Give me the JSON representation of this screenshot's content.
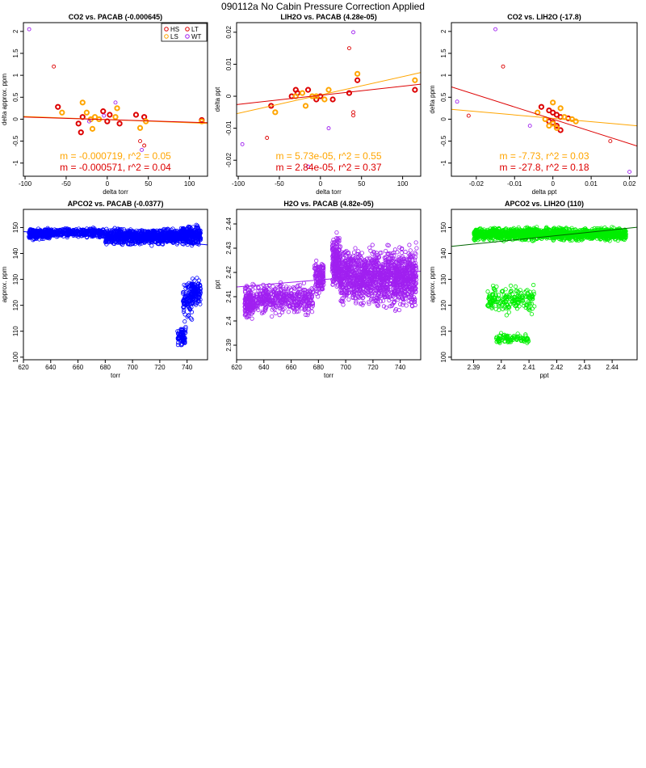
{
  "figure": {
    "title": "090112a   No Cabin Pressure Correction Applied"
  },
  "chart_data": [
    {
      "type": "scatter",
      "title": "CO2 vs. PACAB (-0.000645)",
      "xlabel": "delta torr",
      "ylabel": "delta approx. ppm",
      "xlim": [
        -102,
        122
      ],
      "ylim": [
        -1.3,
        2.2
      ],
      "xticks": [
        -100,
        -50,
        0,
        50,
        100
      ],
      "yticks": [
        -1.0,
        -0.5,
        0.0,
        0.5,
        1.0,
        1.5,
        2.0
      ],
      "grid": false,
      "legend": {
        "placement": "top-right",
        "entries": [
          {
            "label": "HS",
            "color": "#dd0000"
          },
          {
            "label": "LT",
            "color": "#dd0000"
          },
          {
            "label": "LS",
            "color": "#ffa500"
          },
          {
            "label": "WT",
            "color": "#a020f0"
          }
        ]
      },
      "series": [
        {
          "name": "HS",
          "color": "#dd0000",
          "thick": true,
          "x": [
            -60,
            -35,
            -32,
            -30,
            -5,
            0,
            3,
            15,
            35,
            45,
            115
          ],
          "y": [
            0.28,
            -0.1,
            -0.3,
            0.05,
            0.18,
            -0.05,
            0.1,
            -0.1,
            0.1,
            0.05,
            -0.02
          ]
        },
        {
          "name": "LS",
          "color": "#ffa500",
          "thick": true,
          "x": [
            -55,
            -30,
            -25,
            -20,
            -18,
            -15,
            -10,
            10,
            12,
            40,
            47,
            115
          ],
          "y": [
            0.15,
            0.38,
            0.15,
            0.0,
            -0.22,
            0.05,
            0.0,
            0.05,
            0.25,
            -0.2,
            -0.05,
            -0.05
          ]
        },
        {
          "name": "LT",
          "color": "#dd0000",
          "thick": false,
          "x": [
            -65,
            40,
            45
          ],
          "y": [
            1.2,
            -0.5,
            -0.6
          ]
        },
        {
          "name": "WT",
          "color": "#a020f0",
          "thick": false,
          "x": [
            -95,
            10,
            42,
            -22,
            -4
          ],
          "y": [
            2.05,
            0.38,
            -0.7,
            -0.05,
            0.08
          ]
        }
      ],
      "fit_lines": [
        {
          "color": "#ffa500",
          "slope": -0.000719,
          "intercept": -0.01
        },
        {
          "color": "#dd0000",
          "slope": -0.000571,
          "intercept": -0.01
        }
      ],
      "annotations": [
        {
          "text": "m = -0.000719, r^2 = 0.05",
          "color": "#ffa500"
        },
        {
          "text": "m = -0.000571, r^2 = 0.04",
          "color": "#dd0000"
        }
      ]
    },
    {
      "type": "scatter",
      "title": "LIH2O vs. PACAB (4.28e-05)",
      "xlabel": "delta torr",
      "ylabel": "delta ppt",
      "xlim": [
        -102,
        122
      ],
      "ylim": [
        -0.025,
        0.023
      ],
      "xticks": [
        -100,
        -50,
        0,
        50,
        100
      ],
      "yticks": [
        -0.02,
        -0.01,
        0.0,
        0.01,
        0.02
      ],
      "grid": false,
      "series": [
        {
          "name": "HS",
          "color": "#dd0000",
          "thick": true,
          "x": [
            -60,
            -35,
            -30,
            -28,
            -15,
            -5,
            0,
            15,
            35,
            45,
            115
          ],
          "y": [
            -0.003,
            0.0,
            0.002,
            0.001,
            0.002,
            -0.001,
            0.0,
            -0.001,
            0.001,
            0.005,
            0.002
          ]
        },
        {
          "name": "LS",
          "color": "#ffa500",
          "thick": true,
          "x": [
            -55,
            -30,
            -22,
            -18,
            -10,
            -5,
            5,
            10,
            45,
            115
          ],
          "y": [
            -0.005,
            0.0,
            0.001,
            -0.003,
            0.0,
            0.0,
            -0.001,
            0.002,
            0.007,
            0.005
          ]
        },
        {
          "name": "LT",
          "color": "#dd0000",
          "thick": false,
          "x": [
            -65,
            35,
            40,
            40
          ],
          "y": [
            -0.013,
            0.015,
            -0.006,
            -0.005
          ]
        },
        {
          "name": "WT",
          "color": "#a020f0",
          "thick": false,
          "x": [
            -95,
            40,
            -15,
            10
          ],
          "y": [
            -0.015,
            0.02,
            -0.022,
            -0.01
          ]
        }
      ],
      "fit_lines": [
        {
          "color": "#ffa500",
          "slope": 5.73e-05,
          "intercept": 0.0004
        },
        {
          "color": "#dd0000",
          "slope": 2.84e-05,
          "intercept": 0.0003
        }
      ],
      "annotations": [
        {
          "text": "m = 5.73e-05, r^2 = 0.55",
          "color": "#ffa500"
        },
        {
          "text": "m = 2.84e-05, r^2 = 0.37",
          "color": "#dd0000"
        }
      ]
    },
    {
      "type": "scatter",
      "title": "CO2 vs. LIH2O (-17.8)",
      "xlabel": "delta ppt",
      "ylabel": "delta ppm",
      "xlim": [
        -0.0265,
        0.022
      ],
      "ylim": [
        -1.3,
        2.2
      ],
      "xticks": [
        -0.02,
        -0.01,
        0.0,
        0.01,
        0.02
      ],
      "yticks": [
        -1.0,
        -0.5,
        0.0,
        0.5,
        1.0,
        1.5,
        2.0
      ],
      "grid": false,
      "series": [
        {
          "name": "HS",
          "color": "#dd0000",
          "thick": true,
          "x": [
            -0.003,
            -0.001,
            0.0,
            0.001,
            0.002,
            -0.001,
            0.0,
            0.002,
            0.004,
            0.001
          ],
          "y": [
            0.28,
            0.2,
            0.15,
            0.1,
            -0.25,
            -0.05,
            -0.08,
            0.05,
            0.02,
            -0.15
          ]
        },
        {
          "name": "LS",
          "color": "#ffa500",
          "thick": true,
          "x": [
            -0.004,
            -0.002,
            0.0,
            0.0,
            0.002,
            0.003,
            -0.001,
            0.001,
            0.006,
            0.005
          ],
          "y": [
            0.15,
            0.0,
            0.38,
            -0.1,
            0.25,
            0.05,
            -0.15,
            -0.2,
            -0.05,
            0.0
          ]
        },
        {
          "name": "LT",
          "color": "#dd0000",
          "thick": false,
          "x": [
            -0.013,
            -0.022,
            0.015
          ],
          "y": [
            1.2,
            0.08,
            -0.5
          ]
        },
        {
          "name": "WT",
          "color": "#a020f0",
          "thick": false,
          "x": [
            -0.015,
            -0.025,
            0.02,
            -0.006
          ],
          "y": [
            2.05,
            0.4,
            -1.2,
            -0.15
          ]
        }
      ],
      "fit_lines": [
        {
          "color": "#ffa500",
          "slope": -7.73,
          "intercept": 0.02
        },
        {
          "color": "#dd0000",
          "slope": -27.8,
          "intercept": 0.0
        }
      ],
      "annotations": [
        {
          "text": "m = -7.73, r^2 = 0.03",
          "color": "#ffa500"
        },
        {
          "text": "m = -27.8, r^2 = 0.18",
          "color": "#dd0000"
        }
      ]
    },
    {
      "type": "scatter",
      "title": "APCO2 vs. PACAB (-0.0377)",
      "xlabel": "torr",
      "ylabel": "approx. ppm",
      "xlim": [
        620,
        755
      ],
      "ylim": [
        99,
        157
      ],
      "xticks": [
        620,
        640,
        660,
        680,
        700,
        720,
        740
      ],
      "yticks": [
        100,
        110,
        120,
        130,
        140,
        150
      ],
      "grid": false,
      "series": [
        {
          "color": "#0000ff",
          "clusters": [
            {
              "x": [
                624,
                640
              ],
              "y_center": 147.5,
              "y_spread": 2.5,
              "n": 320
            },
            {
              "x": [
                640,
                680
              ],
              "y_center": 148.0,
              "y_spread": 2.2,
              "n": 340
            },
            {
              "x": [
                680,
                735
              ],
              "y_center": 146.5,
              "y_spread": 3.8,
              "n": 900
            },
            {
              "x": [
                735,
                750
              ],
              "y_center": 147.0,
              "y_spread": 4.5,
              "n": 300
            },
            {
              "x": [
                733,
                739
              ],
              "y_center": 108.0,
              "y_spread": 4.5,
              "n": 70
            },
            {
              "x": [
                737,
                744
              ],
              "y_center": 122.0,
              "y_spread": 10.0,
              "n": 90
            },
            {
              "x": [
                743,
                750
              ],
              "y_center": 125.0,
              "y_spread": 7.0,
              "n": 110
            }
          ]
        }
      ],
      "fit_lines": [
        {
          "color": "#0000ff",
          "slope": -0.0377,
          "intercept": 171.8
        }
      ]
    },
    {
      "type": "scatter",
      "title": "H2O vs. PACAB (4.82e-05)",
      "xlabel": "torr",
      "ylabel": "ppt",
      "xlim": [
        620,
        755
      ],
      "ylim": [
        2.384,
        2.446
      ],
      "xticks": [
        620,
        640,
        660,
        680,
        700,
        720,
        740
      ],
      "yticks": [
        2.39,
        2.4,
        2.41,
        2.42,
        2.43,
        2.44
      ],
      "grid": false,
      "series": [
        {
          "color": "#a020f0",
          "clusters": [
            {
              "x": [
                626,
                632
              ],
              "y_center": 2.408,
              "y_spread": 0.009,
              "n": 160
            },
            {
              "x": [
                632,
                676
              ],
              "y_center": 2.409,
              "y_spread": 0.008,
              "n": 450
            },
            {
              "x": [
                677,
                684
              ],
              "y_center": 2.418,
              "y_spread": 0.009,
              "n": 130
            },
            {
              "x": [
                690,
                696
              ],
              "y_center": 2.424,
              "y_spread": 0.014,
              "n": 220
            },
            {
              "x": [
                696,
                752
              ],
              "y_center": 2.418,
              "y_spread": 0.015,
              "n": 1400
            }
          ]
        }
      ],
      "fit_lines": [
        {
          "color": "#a020f0",
          "slope": 4.82e-05,
          "intercept": 2.3841
        }
      ]
    },
    {
      "type": "scatter",
      "title": "APCO2 vs. LIH2O (110)",
      "xlabel": "ppt",
      "ylabel": "approx. ppm",
      "xlim": [
        2.382,
        2.449
      ],
      "ylim": [
        99,
        157
      ],
      "xticks": [
        2.39,
        2.4,
        2.41,
        2.42,
        2.43,
        2.44
      ],
      "yticks": [
        100,
        110,
        120,
        130,
        140,
        150
      ],
      "grid": false,
      "series": [
        {
          "color": "#00ee00",
          "clusters": [
            {
              "x": [
                2.39,
                2.445
              ],
              "y_center": 147.5,
              "y_spread": 3.0,
              "n": 1800
            },
            {
              "x": [
                2.395,
                2.412
              ],
              "y_center": 122.0,
              "y_spread": 7.0,
              "n": 200
            },
            {
              "x": [
                2.398,
                2.41
              ],
              "y_center": 107.0,
              "y_spread": 2.5,
              "n": 90
            }
          ]
        }
      ],
      "fit_lines": [
        {
          "color": "#006400",
          "slope": 110,
          "intercept": -119.3
        }
      ]
    }
  ]
}
